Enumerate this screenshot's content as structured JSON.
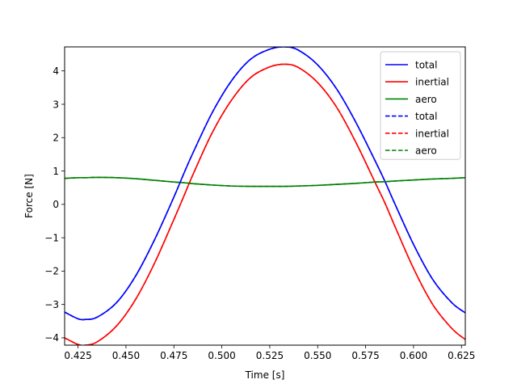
{
  "chart_data": {
    "type": "line",
    "title": "",
    "xlabel": "Time [s]",
    "ylabel": "Force [N]",
    "xlim": [
      0.418,
      0.627
    ],
    "ylim": [
      -4.22,
      4.72
    ],
    "xticks": [
      0.425,
      0.45,
      0.475,
      0.5,
      0.525,
      0.55,
      0.575,
      0.6,
      0.625
    ],
    "xtick_labels": [
      "0.425",
      "0.450",
      "0.475",
      "0.500",
      "0.525",
      "0.550",
      "0.575",
      "0.600",
      "0.625"
    ],
    "yticks": [
      -4,
      -3,
      -2,
      -1,
      0,
      1,
      2,
      3,
      4
    ],
    "ytick_labels": [
      "−4",
      "−3",
      "−2",
      "−1",
      "0",
      "1",
      "2",
      "3",
      "4"
    ],
    "grid": false,
    "legend_position": "top-right",
    "colors": {
      "blue": "#0000ff",
      "red": "#ff0000",
      "green": "#008000"
    },
    "x": [
      0.418,
      0.425,
      0.429,
      0.435,
      0.445,
      0.455,
      0.465,
      0.475,
      0.48,
      0.485,
      0.495,
      0.505,
      0.515,
      0.525,
      0.533,
      0.54,
      0.55,
      0.56,
      0.57,
      0.58,
      0.585,
      0.59,
      0.6,
      0.61,
      0.62,
      0.627
    ],
    "series": [
      {
        "name": "total",
        "style": "solid",
        "color": "#0000ff",
        "values": [
          -3.23,
          -3.43,
          -3.45,
          -3.38,
          -2.95,
          -2.15,
          -1.05,
          0.22,
          0.9,
          1.55,
          2.75,
          3.7,
          4.35,
          4.65,
          4.72,
          4.62,
          4.18,
          3.45,
          2.45,
          1.3,
          0.7,
          0.05,
          -1.2,
          -2.25,
          -2.95,
          -3.25
        ]
      },
      {
        "name": "inertial",
        "style": "solid",
        "color": "#ff0000",
        "values": [
          -4.0,
          -4.2,
          -4.22,
          -4.12,
          -3.65,
          -2.85,
          -1.75,
          -0.45,
          0.22,
          0.9,
          2.15,
          3.12,
          3.8,
          4.12,
          4.2,
          4.1,
          3.65,
          2.9,
          1.85,
          0.65,
          0.05,
          -0.62,
          -1.92,
          -3.0,
          -3.72,
          -4.05
        ]
      },
      {
        "name": "aero",
        "style": "solid",
        "color": "#008000",
        "values": [
          0.78,
          0.8,
          0.8,
          0.81,
          0.8,
          0.77,
          0.72,
          0.67,
          0.65,
          0.62,
          0.58,
          0.55,
          0.54,
          0.54,
          0.54,
          0.55,
          0.57,
          0.6,
          0.63,
          0.67,
          0.68,
          0.7,
          0.73,
          0.76,
          0.78,
          0.8
        ]
      },
      {
        "name": "total",
        "style": "dashed",
        "color": "#0000ff",
        "values": [
          -3.23,
          -3.43,
          -3.45,
          -3.38,
          -2.95,
          -2.15,
          -1.05,
          0.22,
          0.9,
          1.55,
          2.75,
          3.7,
          4.35,
          4.65,
          4.72,
          4.62,
          4.18,
          3.45,
          2.45,
          1.3,
          0.7,
          0.05,
          -1.2,
          -2.25,
          -2.95,
          -3.25
        ]
      },
      {
        "name": "inertial",
        "style": "dashed",
        "color": "#ff0000",
        "values": [
          -4.0,
          -4.2,
          -4.22,
          -4.12,
          -3.65,
          -2.85,
          -1.75,
          -0.45,
          0.22,
          0.9,
          2.15,
          3.12,
          3.8,
          4.12,
          4.2,
          4.1,
          3.65,
          2.9,
          1.85,
          0.65,
          0.05,
          -0.62,
          -1.92,
          -3.0,
          -3.72,
          -4.05
        ]
      },
      {
        "name": "aero",
        "style": "dashed",
        "color": "#008000",
        "values": [
          0.78,
          0.8,
          0.8,
          0.81,
          0.8,
          0.77,
          0.72,
          0.67,
          0.65,
          0.62,
          0.58,
          0.55,
          0.54,
          0.54,
          0.54,
          0.55,
          0.57,
          0.6,
          0.63,
          0.67,
          0.68,
          0.7,
          0.73,
          0.76,
          0.78,
          0.8
        ]
      }
    ]
  }
}
